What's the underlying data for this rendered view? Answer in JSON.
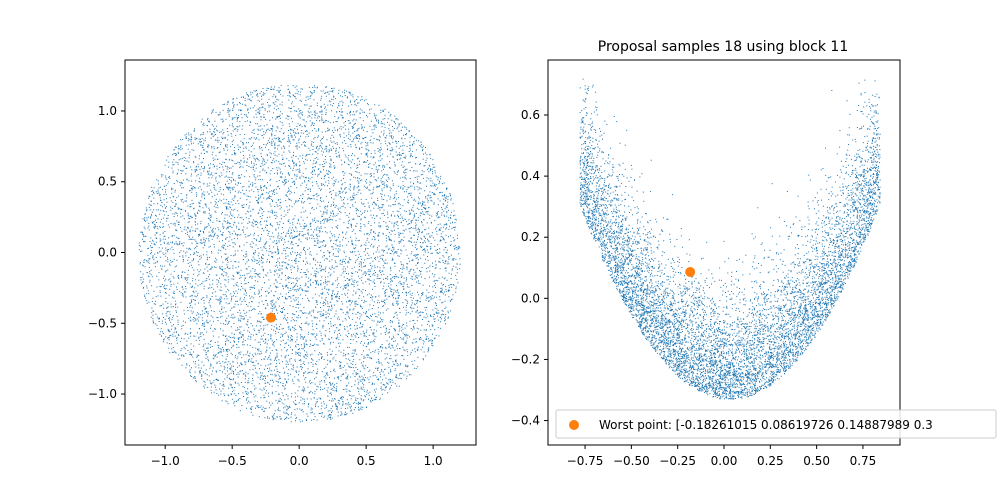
{
  "chart_data": [
    {
      "type": "scatter",
      "title": "",
      "xlabel": "",
      "ylabel": "",
      "xlim": [
        -1.3,
        1.32
      ],
      "ylim": [
        -1.36,
        1.36
      ],
      "xticks": [
        -1.0,
        -0.5,
        0.0,
        0.5,
        1.0
      ],
      "xtick_labels": [
        "−1.0",
        "−0.5",
        "0.0",
        "0.5",
        "1.0"
      ],
      "yticks": [
        -1.0,
        -0.5,
        0.0,
        0.5,
        1.0
      ],
      "ytick_labels": [
        "−1.0",
        "−0.5",
        "0.0",
        "0.5",
        "1.0"
      ],
      "grid": false,
      "series": [
        {
          "description_of_points": "approximately 8000 proposal samples uniformly filling a disk of radius about 1.2 centred near (0, 0)",
          "color": "#1f77b4",
          "point_count": 8000,
          "center": [
            0.0,
            0.0
          ],
          "radius": 1.2
        }
      ],
      "highlight_point": {
        "x": -0.21,
        "y": -0.46,
        "color": "#ff7f0e"
      }
    },
    {
      "type": "scatter",
      "title": "Proposal samples 18 using block 11",
      "xlabel": "",
      "ylabel": "",
      "xlim": [
        -0.95,
        0.95
      ],
      "ylim": [
        -0.48,
        0.78
      ],
      "xticks": [
        -0.75,
        -0.5,
        -0.25,
        0.0,
        0.25,
        0.5,
        0.75
      ],
      "xtick_labels": [
        "−0.75",
        "−0.50",
        "−0.25",
        "0.00",
        "0.25",
        "0.50",
        "0.75"
      ],
      "yticks": [
        -0.4,
        -0.2,
        0.0,
        0.2,
        0.4,
        0.6
      ],
      "ytick_labels": [
        "−0.4",
        "−0.2",
        "0.0",
        "0.2",
        "0.4",
        "0.6"
      ],
      "grid": false,
      "series": [
        {
          "description_of_points": "approximately 8000 proposal samples forming a V / banana shape: bottom near (0.05, -0.37), arms reaching about (-0.78, 0.6) and (0.82, 0.7)",
          "color": "#1f77b4",
          "point_count": 8000
        }
      ],
      "highlight_point": {
        "x": -0.18261015,
        "y": 0.08619726,
        "color": "#ff7f0e"
      },
      "legend": {
        "placement": "lower-right",
        "entries": [
          {
            "label": "Worst point: [-0.18261015  0.08619726  0.14887989  0.3",
            "marker_color": "#ff7f0e"
          }
        ]
      }
    }
  ]
}
